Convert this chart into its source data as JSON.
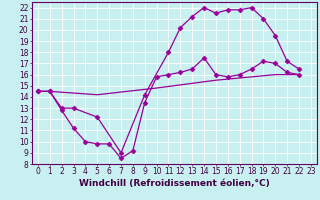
{
  "xlabel": "Windchill (Refroidissement éolien,°C)",
  "background_color": "#c8f0f0",
  "line_color": "#990099",
  "grid_color": "#ffffff",
  "xlim": [
    -0.5,
    23.5
  ],
  "ylim": [
    8,
    22.5
  ],
  "xticks": [
    0,
    1,
    2,
    3,
    4,
    5,
    6,
    7,
    8,
    9,
    10,
    11,
    12,
    13,
    14,
    15,
    16,
    17,
    18,
    19,
    20,
    21,
    22,
    23
  ],
  "yticks": [
    8,
    9,
    10,
    11,
    12,
    13,
    14,
    15,
    16,
    17,
    18,
    19,
    20,
    21,
    22
  ],
  "line1_x": [
    0,
    1,
    2,
    3,
    4,
    5,
    6,
    7,
    8,
    9,
    10,
    11,
    12,
    13,
    14,
    15,
    16,
    17,
    18,
    19,
    20,
    21,
    22
  ],
  "line1_y": [
    14.5,
    14.5,
    12.8,
    11.2,
    10.0,
    9.8,
    9.8,
    8.5,
    9.2,
    13.5,
    15.8,
    16.0,
    16.2,
    16.5,
    17.5,
    16.0,
    15.8,
    16.0,
    16.5,
    17.2,
    17.0,
    16.2,
    16.0
  ],
  "line2_x": [
    0,
    1,
    2,
    3,
    5,
    7,
    9,
    11,
    12,
    13,
    14,
    15,
    16,
    17,
    18,
    19,
    20,
    21,
    22
  ],
  "line2_y": [
    14.5,
    14.5,
    13.0,
    13.0,
    12.2,
    9.0,
    14.2,
    18.0,
    20.2,
    21.2,
    22.0,
    21.5,
    21.8,
    21.8,
    22.0,
    21.0,
    19.5,
    17.2,
    16.5
  ],
  "line3_x": [
    0,
    1,
    5,
    10,
    15,
    18,
    20,
    22
  ],
  "line3_y": [
    14.5,
    14.5,
    14.2,
    14.8,
    15.5,
    15.8,
    16.0,
    16.0
  ],
  "marker": "D",
  "markersize": 2.5,
  "linewidth": 0.9,
  "xlabel_fontsize": 6.5,
  "tick_fontsize": 5.5
}
